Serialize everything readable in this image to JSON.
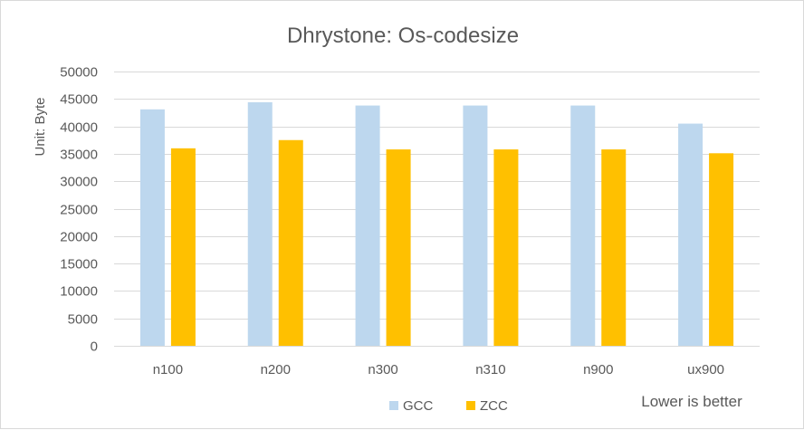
{
  "chart_data": {
    "type": "bar",
    "title": "Dhrystone: Os-codesize",
    "xlabel": "",
    "ylabel": "Unit: Byte",
    "categories": [
      "n100",
      "n200",
      "n300",
      "n310",
      "n900",
      "ux900"
    ],
    "series": [
      {
        "name": "GCC",
        "color": "#bdd7ee",
        "values": [
          43100,
          44400,
          43800,
          43800,
          43800,
          40500
        ]
      },
      {
        "name": "ZCC",
        "color": "#ffc000",
        "values": [
          36000,
          37500,
          35800,
          35800,
          35800,
          35100
        ]
      }
    ],
    "ylim": [
      0,
      50000
    ],
    "yticks": [
      0,
      5000,
      10000,
      15000,
      20000,
      25000,
      30000,
      35000,
      40000,
      45000,
      50000
    ],
    "grid": true,
    "legend": "bottom-center",
    "annotation": "Lower is better",
    "colors": {
      "grid": "#d9d9d9",
      "text": "#595959"
    }
  }
}
